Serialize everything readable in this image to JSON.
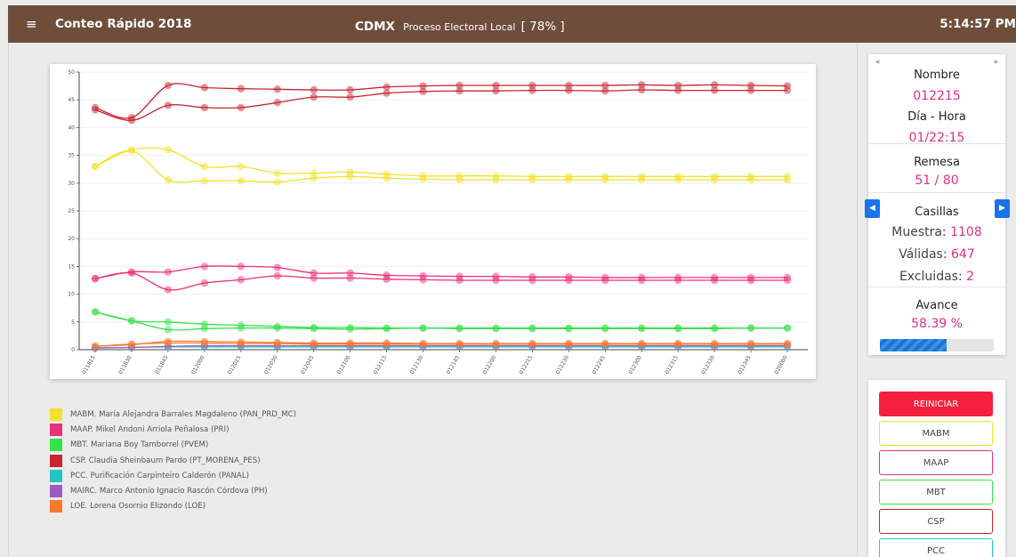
{
  "header": {
    "menu_icon": "≡",
    "app_title": "Conteo Rápido 2018",
    "state": "CDMX",
    "process": "Proceso Electoral Local",
    "percent": "[ 78% ]",
    "clock": "5:14:57 PM",
    "color": "#6e4d3a"
  },
  "chart_data": {
    "type": "line",
    "title": "",
    "xlabel": "",
    "ylabel": "",
    "ylim": [
      0,
      50
    ],
    "yticks": [
      "0",
      "5",
      "10",
      "15",
      "20",
      "25",
      "30",
      "35",
      "40",
      "45",
      "50"
    ],
    "categories": [
      "011815",
      "011830",
      "011845",
      "012000",
      "012015",
      "012030",
      "012045",
      "012100",
      "012115",
      "012130",
      "012145",
      "012200",
      "012215",
      "012230",
      "012245",
      "012300",
      "012315",
      "012330",
      "012345",
      "020000"
    ],
    "series": [
      {
        "name": "MABM",
        "color": "#f2e22a",
        "values": [
          33,
          36,
          36,
          33,
          33,
          31.8,
          31.8,
          32,
          31.6,
          31.3,
          31.3,
          31.3,
          31.2,
          31.2,
          31.2,
          31.2,
          31.2,
          31.2,
          31.2,
          31.2
        ]
      },
      {
        "name": "MABM",
        "color": "#f2e22a",
        "values": [
          33,
          35.8,
          30.6,
          30.4,
          30.4,
          30.2,
          30.9,
          31.2,
          30.9,
          30.7,
          30.6,
          30.6,
          30.6,
          30.6,
          30.6,
          30.6,
          30.6,
          30.6,
          30.6,
          30.6
        ]
      },
      {
        "name": "MAAP",
        "color": "#ec2f7b",
        "values": [
          12.8,
          14,
          14,
          15,
          15,
          14.8,
          13.8,
          13.8,
          13.4,
          13.3,
          13.2,
          13.2,
          13.1,
          13.1,
          13,
          13,
          13,
          13,
          13,
          13
        ]
      },
      {
        "name": "MAAP",
        "color": "#ec2f7b",
        "values": [
          12.8,
          13.8,
          10.8,
          12,
          12.6,
          13.3,
          12.9,
          12.9,
          12.7,
          12.6,
          12.5,
          12.5,
          12.5,
          12.5,
          12.5,
          12.5,
          12.5,
          12.5,
          12.5,
          12.5
        ]
      },
      {
        "name": "MBT",
        "color": "#39e04d",
        "values": [
          6.8,
          5.2,
          5,
          4.6,
          4.4,
          4.2,
          4,
          4,
          3.9,
          3.9,
          3.9,
          3.9,
          3.9,
          3.9,
          3.9,
          3.9,
          3.9,
          3.9,
          3.9,
          3.9
        ]
      },
      {
        "name": "MBT",
        "color": "#39e04d",
        "values": [
          6.8,
          5.2,
          3.6,
          3.8,
          3.9,
          3.9,
          3.8,
          3.7,
          3.8,
          3.9,
          3.8,
          3.8,
          3.8,
          3.8,
          3.8,
          3.8,
          3.8,
          3.8,
          3.9,
          3.9
        ]
      },
      {
        "name": "CSP",
        "color": "#c72432",
        "values": [
          43.6,
          41.8,
          47.6,
          47.2,
          47,
          46.9,
          46.8,
          46.8,
          47.3,
          47.5,
          47.6,
          47.6,
          47.6,
          47.6,
          47.6,
          47.7,
          47.6,
          47.7,
          47.6,
          47.5
        ]
      },
      {
        "name": "CSP",
        "color": "#c72432",
        "values": [
          43.2,
          41.3,
          44,
          43.6,
          43.6,
          44.5,
          45.5,
          45.5,
          46.2,
          46.5,
          46.6,
          46.6,
          46.7,
          46.7,
          46.6,
          46.8,
          46.7,
          46.7,
          46.7,
          46.7
        ]
      },
      {
        "name": "PCC",
        "color": "#22c4c8",
        "values": [
          0.3,
          0.4,
          0.5,
          0.5,
          0.5,
          0.5,
          0.5,
          0.5,
          0.5,
          0.5,
          0.5,
          0.5,
          0.5,
          0.5,
          0.5,
          0.5,
          0.5,
          0.5,
          0.5,
          0.5
        ]
      },
      {
        "name": "MAIRC",
        "color": "#9c5bbd",
        "values": [
          0.3,
          0.4,
          0.6,
          0.7,
          0.7,
          0.7,
          0.7,
          0.7,
          0.7,
          0.7,
          0.7,
          0.7,
          0.7,
          0.7,
          0.7,
          0.7,
          0.7,
          0.7,
          0.7,
          0.7
        ]
      },
      {
        "name": "LOE",
        "color": "#f57a2e",
        "values": [
          0.6,
          1,
          1.2,
          1.2,
          1.1,
          1.1,
          1,
          1,
          1,
          1,
          1,
          1,
          1,
          1,
          1,
          1,
          1,
          1,
          1,
          1
        ]
      },
      {
        "name": "LOE",
        "color": "#f57a2e",
        "values": [
          0.6,
          0.9,
          1.5,
          1.5,
          1.4,
          1.3,
          1.2,
          1.2,
          1.2,
          1.1,
          1.1,
          1.1,
          1.1,
          1.1,
          1.1,
          1.1,
          1.1,
          1.1,
          1.1,
          1.1
        ]
      }
    ],
    "grid": true
  },
  "legend": [
    {
      "color": "#f2e22a",
      "label": "MABM. María Alejandra Barrales Magdaleno (PAN_PRD_MC)"
    },
    {
      "color": "#ec2f7b",
      "label": "MAAP. Mikel Andoni Arriola Peñalosa (PRI)"
    },
    {
      "color": "#39e04d",
      "label": "MBT. Mariana Boy Tamborrel (PVEM)"
    },
    {
      "color": "#c72432",
      "label": "CSP. Claudia Sheinbaum Pardo (PT_MORENA_PES)"
    },
    {
      "color": "#22c4c8",
      "label": "PCC. Purificación Carpinteiro Calderón (PANAL)"
    },
    {
      "color": "#9c5bbd",
      "label": "MAIRC. Marco Antonio Ignacio Rascón Córdova (PH)"
    },
    {
      "color": "#f57a2e",
      "label": "LOE. Lorena Osornio Elizondo (LOE)"
    }
  ],
  "info": {
    "prev_icon": "«",
    "next_icon": "»",
    "nombre_label": "Nombre",
    "nombre_value": "012215",
    "diahora_label": "Día - Hora",
    "diahora_value": "01/22:15",
    "remesa_label": "Remesa",
    "remesa_value": "51 / 80",
    "casillas_label": "Casillas",
    "muestra_label": "Muestra:",
    "muestra_value": "1108",
    "validas_label": "Válidas:",
    "validas_value": "647",
    "excluidas_label": "Excluidas:",
    "excluidas_value": "2",
    "avance_label": "Avance",
    "avance_value": "58.39 %",
    "avance_fraction": 0.5839,
    "left_arrow": "◀",
    "right_arrow": "▶"
  },
  "buttons": [
    {
      "label": "REINICIAR",
      "color": "#f5203d"
    },
    {
      "label": "MABM",
      "color": "#f2e22a"
    },
    {
      "label": "MAAP",
      "color": "#ec2f7b"
    },
    {
      "label": "MBT",
      "color": "#39e04d"
    },
    {
      "label": "CSP",
      "color": "#c72432"
    },
    {
      "label": "PCC",
      "color": "#22c4c8"
    }
  ]
}
